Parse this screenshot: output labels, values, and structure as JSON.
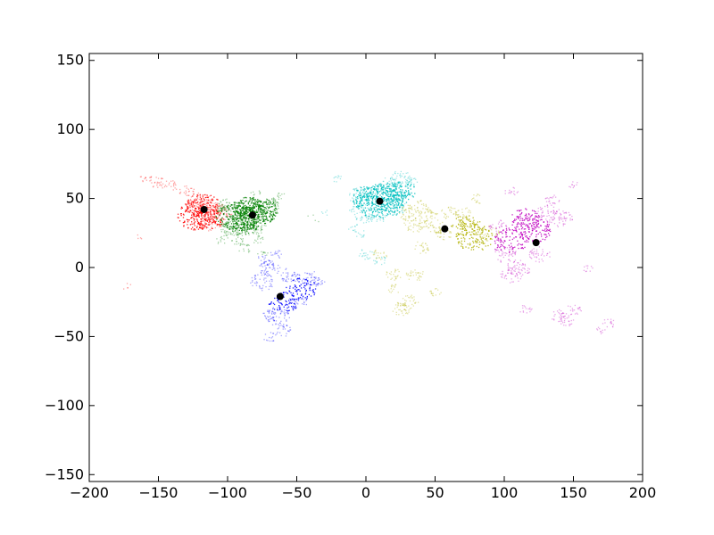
{
  "chart_data": {
    "type": "scatter",
    "title": "",
    "xlabel": "",
    "ylabel": "",
    "xlim": [
      -200,
      200
    ],
    "ylim": [
      -155,
      155
    ],
    "x_ticks": [
      -200,
      -150,
      -100,
      -50,
      0,
      50,
      100,
      150,
      200
    ],
    "y_ticks": [
      150,
      100,
      50,
      0,
      -50,
      -100,
      -150
    ],
    "x_tick_labels": [
      "−200",
      "−150",
      "−100",
      "−50",
      "0",
      "50",
      "100",
      "150",
      "200"
    ],
    "y_tick_labels": [
      "150",
      "100",
      "50",
      "0",
      "−50",
      "−100",
      "−150"
    ],
    "grid": false,
    "legend": "none",
    "centroid_color": "#000000",
    "centroids": [
      {
        "x": -117,
        "y": 42
      },
      {
        "x": -82,
        "y": 38
      },
      {
        "x": -62,
        "y": -21
      },
      {
        "x": 10,
        "y": 48
      },
      {
        "x": 57,
        "y": 28
      },
      {
        "x": 123,
        "y": 18
      }
    ],
    "clusters": [
      {
        "color": "#ff0000",
        "points": [
          [
            -118,
            45,
            100
          ],
          [
            -122,
            38,
            140
          ],
          [
            -115,
            36,
            90
          ],
          [
            -120,
            48,
            60
          ],
          [
            -110,
            42,
            50
          ],
          [
            -112,
            33,
            50
          ],
          [
            -124,
            45,
            40
          ],
          [
            -105,
            40,
            40
          ],
          [
            -130,
            55,
            25
          ],
          [
            -150,
            62,
            25
          ],
          [
            -160,
            65,
            15
          ],
          [
            -140,
            60,
            15
          ],
          [
            -165,
            22,
            4
          ],
          [
            -175,
            -14,
            3
          ],
          [
            -172,
            -13,
            2
          ]
        ]
      },
      {
        "color": "#008000",
        "points": [
          [
            -87,
            38,
            160
          ],
          [
            -80,
            40,
            140
          ],
          [
            -95,
            38,
            120
          ],
          [
            -75,
            42,
            80
          ],
          [
            -90,
            32,
            90
          ],
          [
            -97,
            30,
            60
          ],
          [
            -85,
            44,
            70
          ],
          [
            -78,
            35,
            50
          ],
          [
            -70,
            45,
            40
          ],
          [
            -100,
            45,
            40
          ],
          [
            -82,
            27,
            30
          ],
          [
            -92,
            20,
            20
          ],
          [
            -88,
            14,
            15
          ],
          [
            -78,
            20,
            12
          ],
          [
            -75,
            10,
            10
          ],
          [
            -65,
            48,
            15
          ],
          [
            -100,
            25,
            15
          ],
          [
            -105,
            20,
            10
          ],
          [
            -62,
            52,
            8
          ],
          [
            -80,
            55,
            8
          ],
          [
            -40,
            38,
            2
          ],
          [
            -35,
            35,
            2
          ]
        ]
      },
      {
        "color": "#0000ff",
        "points": [
          [
            -47,
            -15,
            80
          ],
          [
            -60,
            -25,
            70
          ],
          [
            -75,
            -10,
            50
          ],
          [
            -65,
            -35,
            60
          ],
          [
            -70,
            0,
            40
          ],
          [
            -55,
            -5,
            40
          ],
          [
            -60,
            -45,
            25
          ],
          [
            -70,
            -50,
            15
          ],
          [
            -40,
            -8,
            40
          ],
          [
            -35,
            -10,
            15
          ],
          [
            -75,
            5,
            25
          ],
          [
            -50,
            -25,
            30
          ],
          [
            -65,
            10,
            15
          ],
          [
            -70,
            -35,
            20
          ]
        ]
      },
      {
        "color": "#00bfbf",
        "points": [
          [
            10,
            48,
            200
          ],
          [
            5,
            50,
            140
          ],
          [
            15,
            52,
            140
          ],
          [
            25,
            55,
            80
          ],
          [
            -3,
            52,
            60
          ],
          [
            20,
            45,
            60
          ],
          [
            -5,
            40,
            40
          ],
          [
            25,
            65,
            40
          ],
          [
            0,
            36,
            20
          ],
          [
            10,
            36,
            15
          ],
          [
            -10,
            30,
            10
          ],
          [
            15,
            60,
            40
          ],
          [
            30,
            62,
            30
          ],
          [
            -20,
            64,
            10
          ],
          [
            -30,
            40,
            5
          ],
          [
            -5,
            25,
            12
          ],
          [
            0,
            10,
            20
          ],
          [
            10,
            5,
            15
          ]
        ]
      },
      {
        "color": "#b2b200",
        "points": [
          [
            78,
            22,
            120
          ],
          [
            72,
            30,
            80
          ],
          [
            35,
            32,
            50
          ],
          [
            45,
            38,
            40
          ],
          [
            32,
            40,
            50
          ],
          [
            50,
            30,
            30
          ],
          [
            55,
            25,
            30
          ],
          [
            40,
            15,
            25
          ],
          [
            35,
            -5,
            30
          ],
          [
            30,
            -25,
            40
          ],
          [
            25,
            -30,
            30
          ],
          [
            20,
            -5,
            25
          ],
          [
            10,
            10,
            20
          ],
          [
            50,
            -18,
            15
          ],
          [
            88,
            25,
            40
          ],
          [
            60,
            40,
            30
          ],
          [
            70,
            40,
            20
          ],
          [
            80,
            50,
            15
          ],
          [
            40,
            45,
            20
          ],
          [
            20,
            -15,
            15
          ]
        ]
      },
      {
        "color": "#bf00bf",
        "points": [
          [
            120,
            28,
            120
          ],
          [
            105,
            20,
            100
          ],
          [
            130,
            40,
            50
          ],
          [
            140,
            36,
            50
          ],
          [
            115,
            35,
            80
          ],
          [
            100,
            10,
            50
          ],
          [
            110,
            0,
            50
          ],
          [
            125,
            10,
            40
          ],
          [
            105,
            -5,
            40
          ],
          [
            140,
            -35,
            30
          ],
          [
            145,
            -38,
            20
          ],
          [
            150,
            -30,
            20
          ],
          [
            115,
            -30,
            15
          ],
          [
            135,
            50,
            20
          ],
          [
            150,
            60,
            10
          ],
          [
            175,
            -40,
            15
          ],
          [
            170,
            -45,
            10
          ],
          [
            160,
            0,
            10
          ],
          [
            95,
            30,
            30
          ],
          [
            105,
            55,
            15
          ]
        ]
      }
    ]
  }
}
